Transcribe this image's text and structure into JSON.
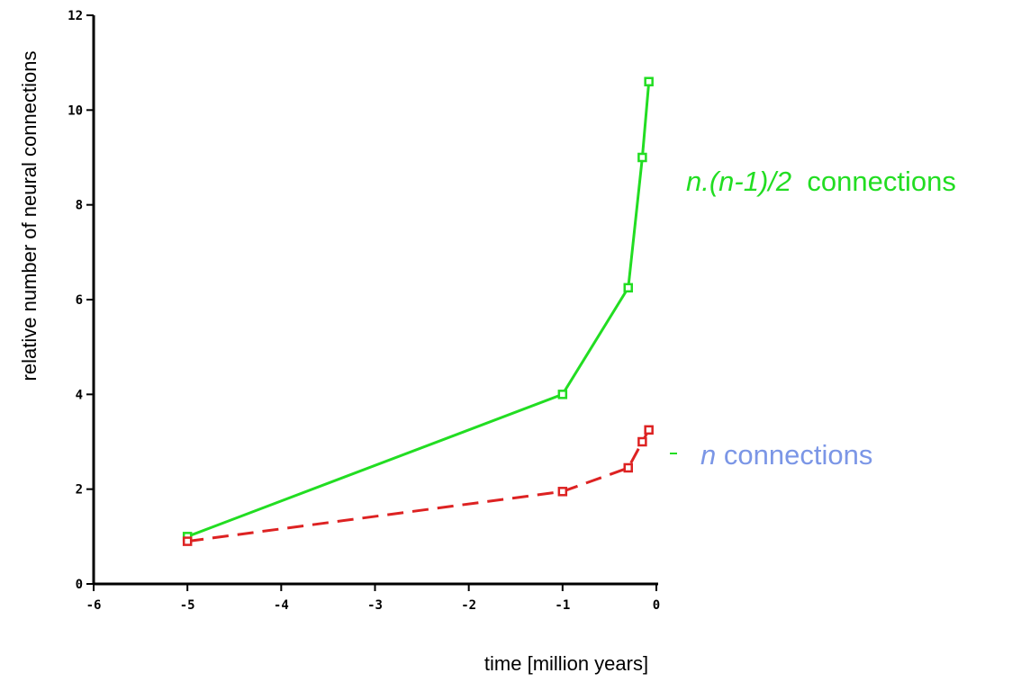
{
  "chart_data": {
    "type": "line",
    "xlabel": "time [million years]",
    "ylabel": "relative number of neural connections",
    "xlim": [
      -6,
      0
    ],
    "ylim": [
      0,
      12
    ],
    "xticks": [
      -6,
      -5,
      -4,
      -3,
      -2,
      -1,
      0
    ],
    "yticks": [
      0,
      2,
      4,
      6,
      8,
      10,
      12
    ],
    "grid": false,
    "series": [
      {
        "name_formula": "n.(n-1)/2",
        "name_suffix": "connections",
        "color": "#22dd22",
        "line_style": "solid",
        "marker": "square",
        "x": [
          -5,
          -1,
          -0.3,
          -0.15,
          -0.08
        ],
        "y": [
          1.0,
          4.0,
          6.25,
          9.0,
          10.6
        ]
      },
      {
        "name_formula": "n",
        "name_suffix": "connections",
        "color": "#dd2222",
        "label_color": "#7b96e6",
        "line_style": "dashed",
        "marker": "square",
        "x": [
          -5,
          -1,
          -0.3,
          -0.15,
          -0.08
        ],
        "y": [
          0.9,
          1.95,
          2.45,
          3.0,
          3.25
        ]
      }
    ]
  }
}
